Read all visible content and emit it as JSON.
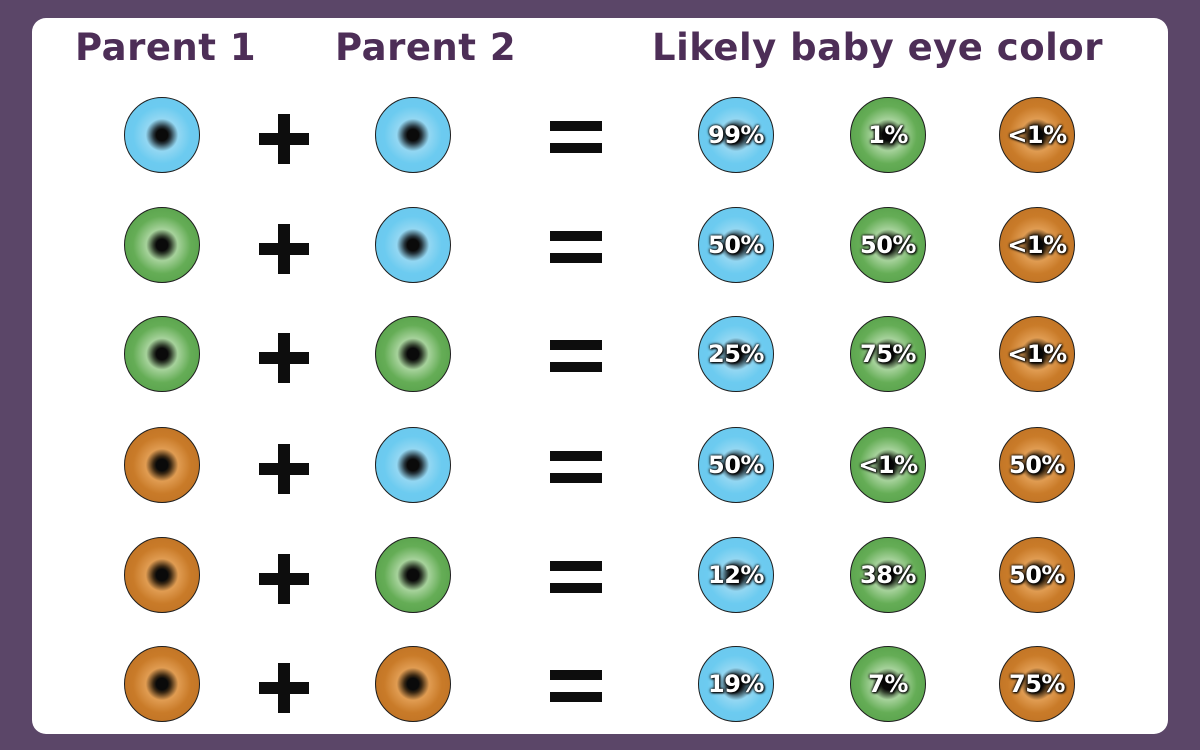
{
  "headers": {
    "parent1": "Parent 1",
    "parent2": "Parent 2",
    "result": "Likely baby eye color"
  },
  "colors": {
    "background": "#5b4668",
    "card": "#ffffff",
    "header_text": "#4d2e57",
    "blue": "#6ccbf0",
    "green": "#65ad56",
    "brown": "#c97b29"
  },
  "result_order": [
    "blue",
    "green",
    "brown"
  ],
  "rows": [
    {
      "parent1": "blue",
      "parent2": "blue",
      "results": [
        "99%",
        "1%",
        "<1%"
      ]
    },
    {
      "parent1": "green",
      "parent2": "blue",
      "results": [
        "50%",
        "50%",
        "<1%"
      ]
    },
    {
      "parent1": "green",
      "parent2": "green",
      "results": [
        "25%",
        "75%",
        "<1%"
      ]
    },
    {
      "parent1": "brown",
      "parent2": "blue",
      "results": [
        "50%",
        "<1%",
        "50%"
      ]
    },
    {
      "parent1": "brown",
      "parent2": "green",
      "results": [
        "12%",
        "38%",
        "50%"
      ]
    },
    {
      "parent1": "brown",
      "parent2": "brown",
      "results": [
        "19%",
        "7%",
        "75%"
      ]
    }
  ]
}
